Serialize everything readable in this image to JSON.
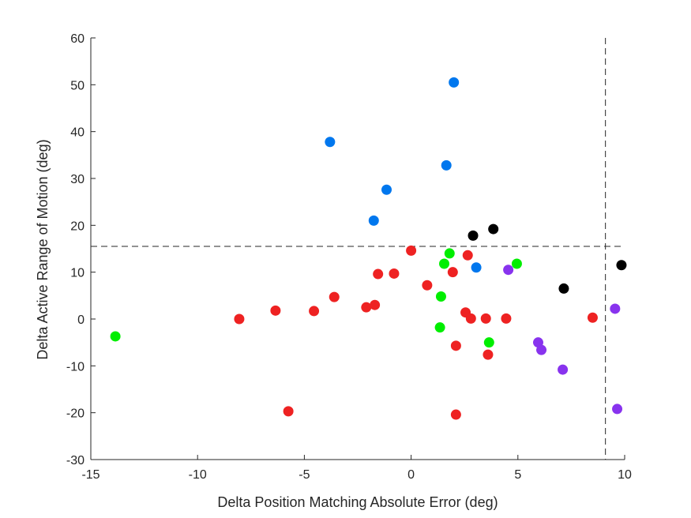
{
  "chart_data": {
    "type": "scatter",
    "xlabel": "Delta Position Matching Absolute Error (deg)",
    "ylabel": "Delta Active Range of Motion (deg)",
    "xlim": [
      -15,
      10
    ],
    "ylim": [
      -30,
      60
    ],
    "xticks": [
      -15,
      -10,
      -5,
      0,
      5,
      10
    ],
    "yticks": [
      -30,
      -20,
      -10,
      0,
      10,
      20,
      30,
      40,
      50,
      60
    ],
    "grid": false,
    "legend": "none",
    "reference_lines": {
      "vertical_x": 9.1,
      "horizontal_y": 15.5,
      "style": "dashed"
    },
    "series": [
      {
        "color": "#0077ee",
        "points": [
          [
            2.0,
            50.5
          ],
          [
            -3.8,
            37.8
          ],
          [
            1.65,
            32.8
          ],
          [
            -1.15,
            27.6
          ],
          [
            -1.75,
            21.0
          ],
          [
            3.05,
            11.0
          ]
        ]
      },
      {
        "color": "#000000",
        "points": [
          [
            2.9,
            17.8
          ],
          [
            3.85,
            19.2
          ],
          [
            7.15,
            6.5
          ],
          [
            9.85,
            11.5
          ]
        ]
      },
      {
        "color": "#00ee00",
        "points": [
          [
            -13.85,
            -3.7
          ],
          [
            1.8,
            14.0
          ],
          [
            1.55,
            11.8
          ],
          [
            4.95,
            11.8
          ],
          [
            1.4,
            4.8
          ],
          [
            1.35,
            -1.8
          ],
          [
            3.65,
            -5.0
          ]
        ]
      },
      {
        "color": "#8833ee",
        "points": [
          [
            4.55,
            10.5
          ],
          [
            5.95,
            -5.0
          ],
          [
            6.1,
            -6.6
          ],
          [
            7.1,
            -10.8
          ],
          [
            9.55,
            2.2
          ],
          [
            9.65,
            -19.2
          ]
        ]
      },
      {
        "color": "#ee2222",
        "points": [
          [
            0.0,
            14.6
          ],
          [
            2.65,
            13.6
          ],
          [
            -1.55,
            9.6
          ],
          [
            -0.8,
            9.7
          ],
          [
            1.95,
            10.0
          ],
          [
            0.75,
            7.2
          ],
          [
            -3.6,
            4.7
          ],
          [
            -2.1,
            2.5
          ],
          [
            -1.7,
            3.0
          ],
          [
            -6.35,
            1.8
          ],
          [
            -4.55,
            1.7
          ],
          [
            -8.05,
            0.0
          ],
          [
            2.55,
            1.4
          ],
          [
            2.8,
            0.1
          ],
          [
            3.5,
            0.1
          ],
          [
            4.45,
            0.1
          ],
          [
            8.5,
            0.3
          ],
          [
            2.1,
            -5.7
          ],
          [
            3.6,
            -7.6
          ],
          [
            -5.75,
            -19.7
          ],
          [
            2.1,
            -20.4
          ]
        ]
      }
    ]
  }
}
